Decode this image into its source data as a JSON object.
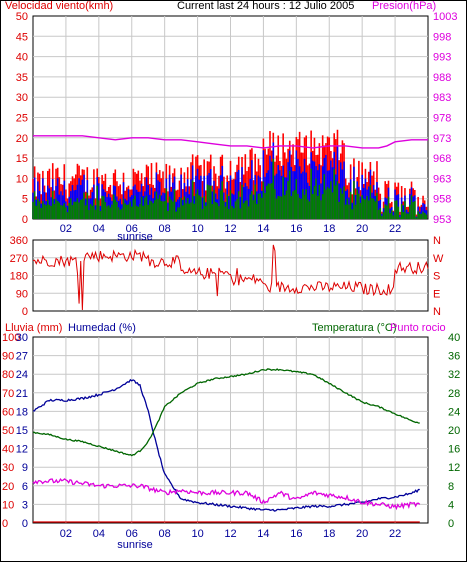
{
  "header": {
    "wind_title": "Velocidad viento(kmh)",
    "current_title": "Current last 24 hours : 12 Julio 2005",
    "pressure_title": "Presion(hPa)"
  },
  "lower_header": {
    "rain_title": "Lluvia (mm)",
    "humidity_title": "Humedad (%)",
    "temp_title": "Temperatura (°C)",
    "dew_title": "Punto rocio"
  },
  "colors": {
    "wind": "#ff0000",
    "gust": "#0000ff",
    "avg": "#008000",
    "pressure": "#dd00dd",
    "direction": "#dd0000",
    "humidity": "#000099",
    "temperature": "#006600",
    "dew": "#dd00dd",
    "rain": "#0000cc",
    "grid": "#c8c8c8"
  },
  "chart_data": [
    {
      "type": "bar",
      "name": "wind_pressure",
      "x_ticks": [
        "02",
        "04",
        "06",
        "08",
        "10",
        "12",
        "14",
        "16",
        "18",
        "20",
        "22"
      ],
      "x_marker": "sunrise",
      "ylim_left": [
        0,
        50
      ],
      "y_ticks_left": [
        0,
        5,
        10,
        15,
        20,
        25,
        30,
        35,
        40,
        45,
        50
      ],
      "y_ticks_right": [
        953,
        958,
        963,
        968,
        973,
        978,
        983,
        988,
        993,
        998,
        1003
      ],
      "ylim_right": [
        953,
        1003
      ],
      "pressure_hours": [
        0,
        3,
        4,
        5,
        6,
        7,
        8,
        9,
        10,
        11,
        12,
        13,
        14,
        15,
        16,
        17,
        18,
        19,
        20,
        21,
        21.5,
        22,
        23,
        24
      ],
      "pressure": [
        973.5,
        973.5,
        973,
        972.5,
        973,
        973,
        972.5,
        972.5,
        972,
        971.5,
        971,
        971,
        970.5,
        971,
        971,
        970.5,
        971,
        971,
        970.5,
        970.5,
        971,
        972,
        972.5,
        972.5
      ]
    },
    {
      "type": "scatter",
      "name": "wind_direction",
      "y_ticks": [
        0,
        90,
        180,
        270,
        360
      ],
      "y_ticks_right": [
        "N",
        "E",
        "S",
        "W",
        "N"
      ],
      "ylim": [
        0,
        360
      ]
    },
    {
      "type": "line",
      "name": "rain_humidity_temp",
      "y_ticks_rain": [
        0,
        10,
        20,
        30,
        40,
        50,
        60,
        70,
        80,
        90,
        100
      ],
      "y_ticks_hum": [
        0,
        3,
        6,
        9,
        12,
        15,
        18,
        21,
        24,
        27,
        30
      ],
      "y_ticks_temp": [
        0,
        4,
        8,
        12,
        16,
        20,
        24,
        28,
        32,
        36,
        40
      ],
      "hours": [
        0,
        1,
        2,
        3,
        4,
        5,
        6,
        6.5,
        7,
        7.5,
        8,
        9,
        10,
        11,
        12,
        13,
        14,
        15,
        16,
        17,
        18,
        19,
        20,
        21,
        22,
        23,
        23.5
      ],
      "humidity": [
        60,
        66,
        66,
        67,
        69,
        72,
        77,
        74,
        60,
        42,
        26,
        13,
        11,
        10,
        9,
        8,
        7,
        7,
        8,
        9,
        9,
        10,
        11,
        13,
        14,
        16,
        18
      ],
      "temperature": [
        19.5,
        19,
        18,
        17.5,
        16.5,
        15.5,
        14.5,
        15.5,
        17.5,
        21,
        25,
        28,
        30,
        31,
        31.5,
        32,
        33,
        33,
        32.5,
        32,
        30,
        28,
        26,
        25,
        23.5,
        22,
        21.5
      ],
      "dew_point": [
        9,
        9,
        9,
        8.5,
        8,
        8,
        8,
        8,
        7.5,
        7,
        6.5,
        7,
        6.5,
        6.5,
        6.5,
        6.5,
        4.5,
        6.5,
        5,
        6.5,
        6,
        5.5,
        4.5,
        4,
        3.5,
        4,
        4
      ],
      "rain": [
        0,
        0,
        0,
        0,
        0,
        0,
        0,
        0,
        0,
        0,
        0,
        0,
        0,
        0,
        0,
        0,
        0,
        0,
        0,
        0,
        0,
        0,
        0,
        0,
        0,
        0,
        0
      ]
    }
  ]
}
